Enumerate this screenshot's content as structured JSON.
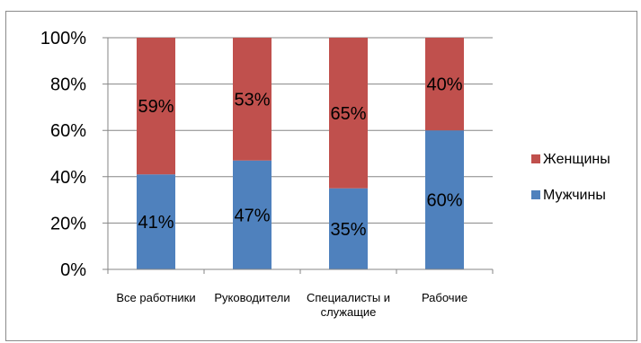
{
  "chart_data": {
    "type": "bar",
    "stacked": true,
    "percent": true,
    "categories": [
      [
        "Все работники"
      ],
      [
        "Руководители"
      ],
      [
        "Специалисты и",
        "служащие"
      ],
      [
        "Рабочие"
      ]
    ],
    "series": [
      {
        "name": "Мужчины",
        "values": [
          41,
          47,
          35,
          60
        ],
        "labels": [
          "41%",
          "47%",
          "35%",
          "60%"
        ],
        "color": "#4f81bd"
      },
      {
        "name": "Женщины",
        "values": [
          59,
          53,
          65,
          40
        ],
        "labels": [
          "59%",
          "53%",
          "65%",
          "40%"
        ],
        "color": "#c0504d"
      }
    ],
    "yticks": [
      "0%",
      "20%",
      "40%",
      "60%",
      "80%",
      "100%"
    ],
    "ylim": [
      0,
      100
    ],
    "grid": true,
    "legend": "right",
    "legend_order": [
      "Женщины",
      "Мужчины"
    ]
  }
}
